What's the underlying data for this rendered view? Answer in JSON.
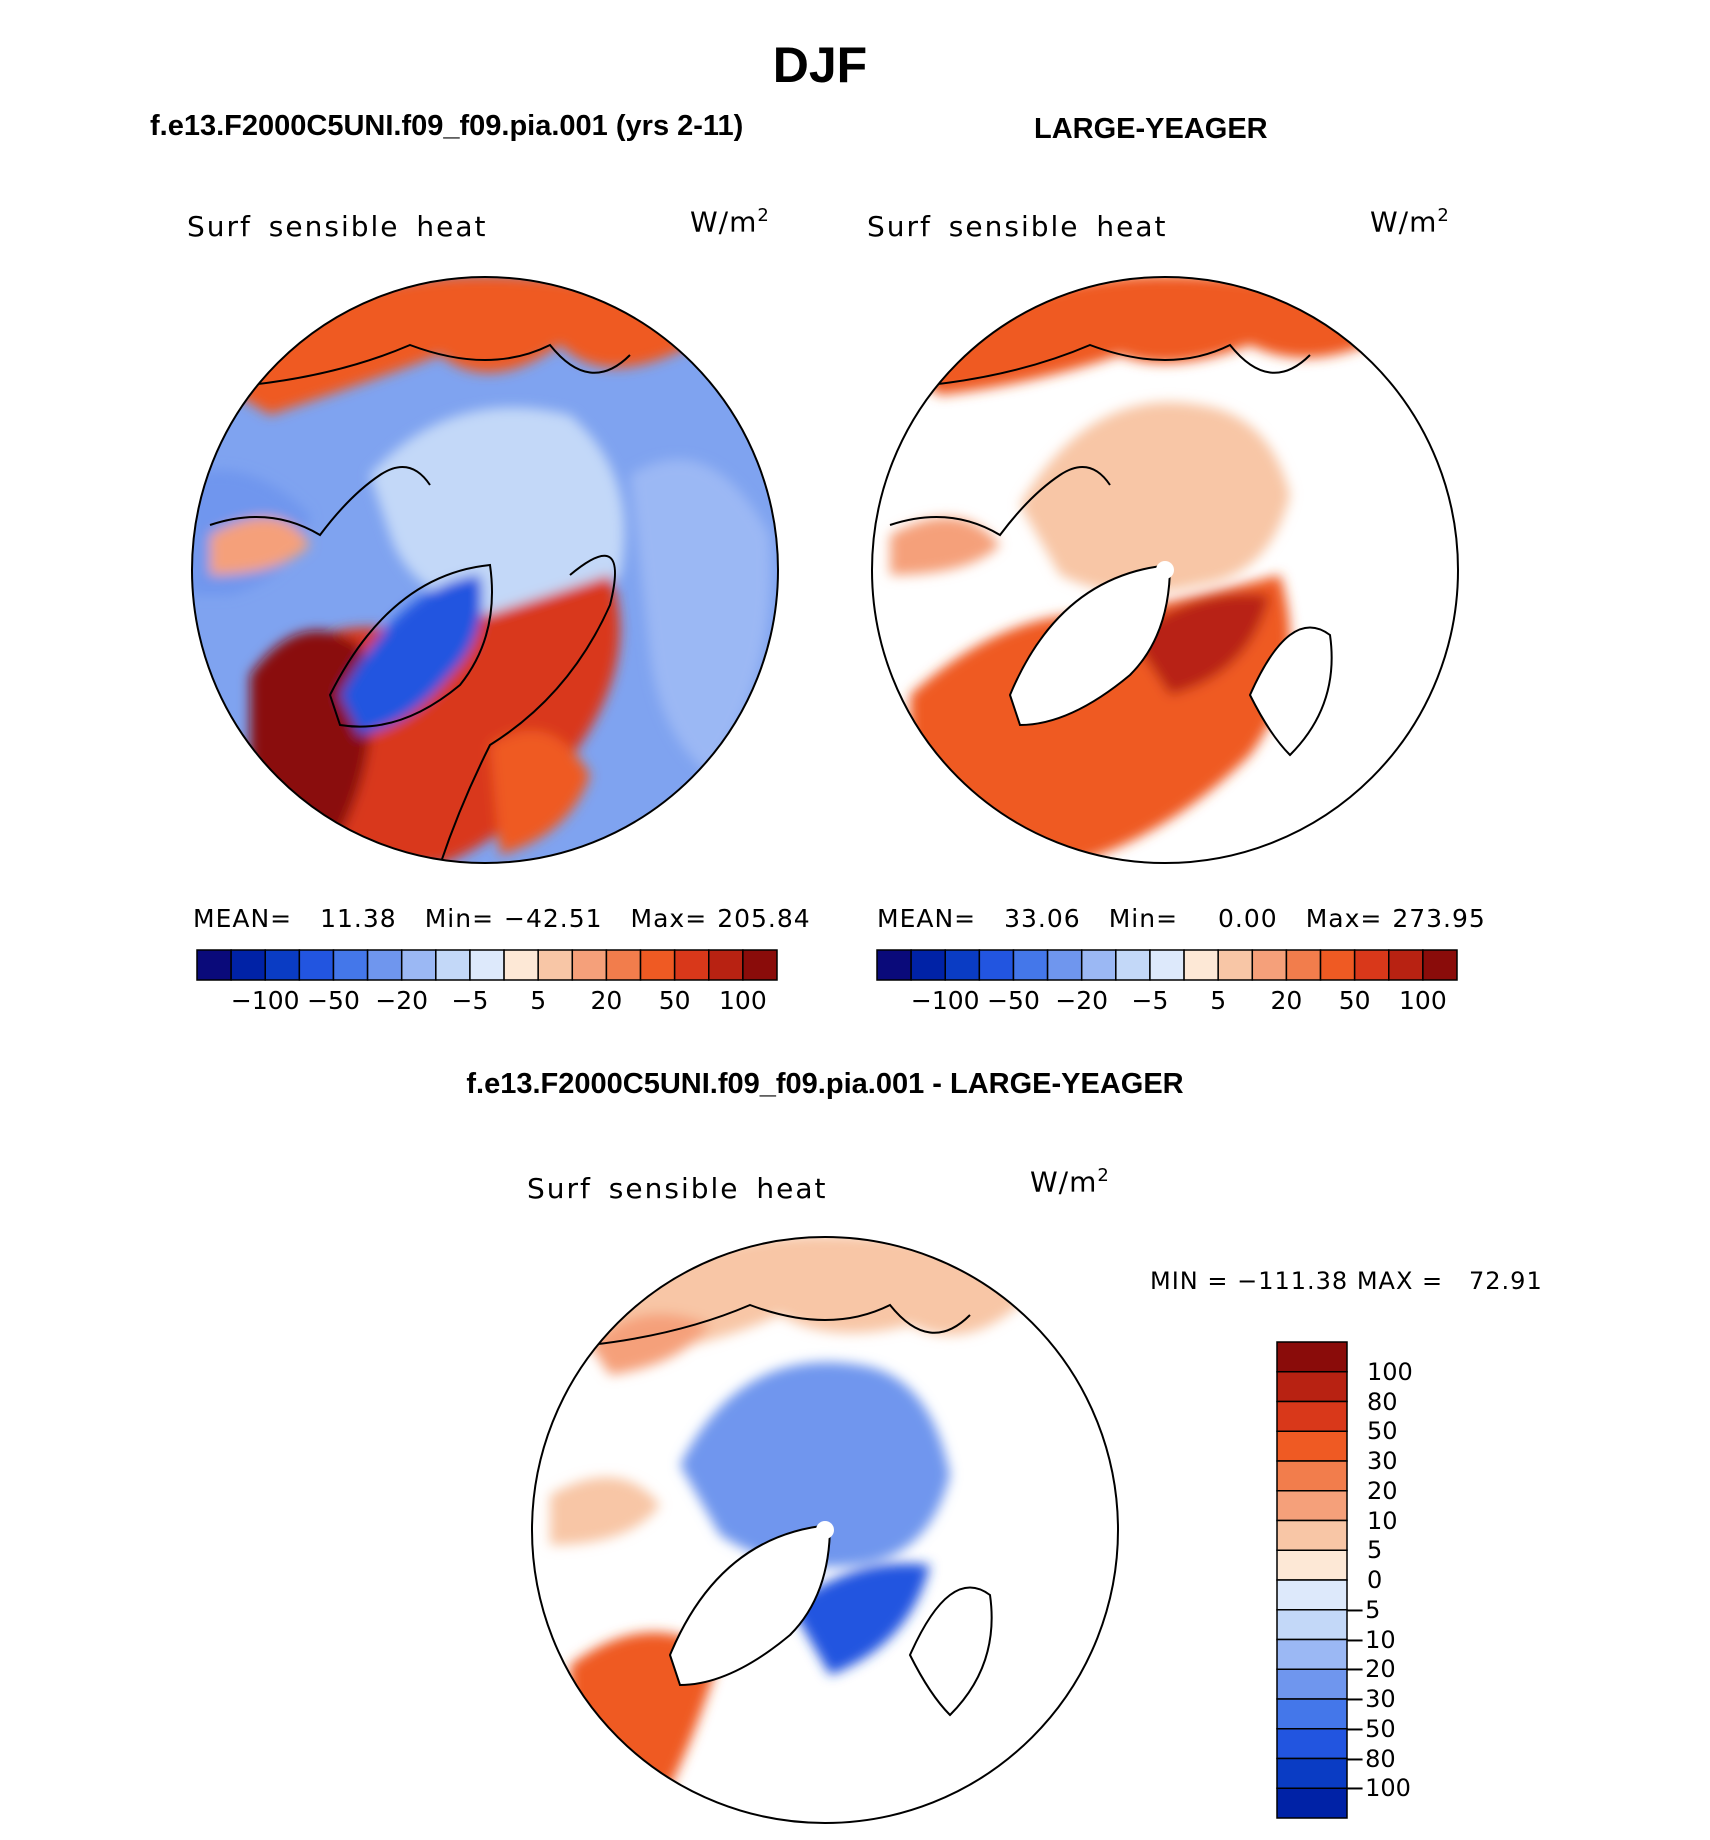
{
  "page_title": "DJF",
  "colors": {
    "seq_top": [
      "#0a0a7a",
      "#0022a6",
      "#0a3cc4",
      "#2255e0",
      "#4477ea",
      "#6f96ee",
      "#9bb8f4",
      "#c3d8f8",
      "#dde9fb",
      "#fde8d6",
      "#f8c6a6",
      "#f5a07a",
      "#f27d4c",
      "#ef5a23",
      "#d9381a",
      "#b82212",
      "#8a0c0a"
    ],
    "diff": [
      "#8a0c0a",
      "#b82212",
      "#d9381a",
      "#ef5a23",
      "#f27d4c",
      "#f5a07a",
      "#f8c6a6",
      "#fde8d6",
      "#dde9fb",
      "#c3d8f8",
      "#9bb8f4",
      "#6f96ee",
      "#4477ea",
      "#2255e0",
      "#0a3cc4",
      "#0022a6"
    ]
  },
  "panels": {
    "left": {
      "header": "f.e13.F2000C5UNI.f09_f09.pia.001 (yrs 2-11)",
      "variable": "Surf sensible heat",
      "units_base": "W/m",
      "units_exp": "2",
      "stats": {
        "mean_label": "MEAN=",
        "mean": "11.38",
        "min_label": "Min=",
        "min": "−42.51",
        "max_label": "Max=",
        "max": "205.84"
      },
      "colorbar_ticks": [
        "−100",
        "−50",
        "−20",
        "−5",
        "5",
        "20",
        "50",
        "100"
      ]
    },
    "right": {
      "header": "LARGE-YEAGER",
      "variable": "Surf sensible heat",
      "units_base": "W/m",
      "units_exp": "2",
      "stats": {
        "mean_label": "MEAN=",
        "mean": "33.06",
        "min_label": "Min=",
        "min": "0.00",
        "max_label": "Max=",
        "max": "273.95"
      },
      "colorbar_ticks": [
        "−100",
        "−50",
        "−20",
        "−5",
        "5",
        "20",
        "50",
        "100"
      ]
    },
    "bottom": {
      "header": "f.e13.F2000C5UNI.f09_f09.pia.001 - LARGE-YEAGER",
      "variable": "Surf sensible heat",
      "units_base": "W/m",
      "units_exp": "2",
      "minmax": "MIN = −111.38 MAX =   72.91",
      "colorbar_ticks": [
        "100",
        "80",
        "50",
        "30",
        "20",
        "10",
        "5",
        "0",
        "−5",
        "−10",
        "−20",
        "−30",
        "−50",
        "−80",
        "−100"
      ]
    }
  },
  "chart_data": [
    {
      "type": "heatmap",
      "title": "f.e13.F2000C5UNI.f09_f09.pia.001 (yrs 2-11)",
      "variable": "Surf sensible heat",
      "units": "W/m^2",
      "projection": "north polar stereographic",
      "mean": 11.38,
      "min": -42.51,
      "max": 205.84,
      "levels": [
        -100,
        -50,
        -20,
        -5,
        5,
        20,
        50,
        100
      ]
    },
    {
      "type": "heatmap",
      "title": "LARGE-YEAGER",
      "variable": "Surf sensible heat",
      "units": "W/m^2",
      "projection": "north polar stereographic",
      "mean": 33.06,
      "min": 0.0,
      "max": 273.95,
      "levels": [
        -100,
        -50,
        -20,
        -5,
        5,
        20,
        50,
        100
      ]
    },
    {
      "type": "heatmap",
      "title": "f.e13.F2000C5UNI.f09_f09.pia.001 - LARGE-YEAGER",
      "variable": "Surf sensible heat",
      "units": "W/m^2",
      "projection": "north polar stereographic",
      "min": -111.38,
      "max": 72.91,
      "levels": [
        100,
        80,
        50,
        30,
        20,
        10,
        5,
        0,
        -5,
        -10,
        -20,
        -30,
        -50,
        -80,
        -100
      ]
    }
  ]
}
